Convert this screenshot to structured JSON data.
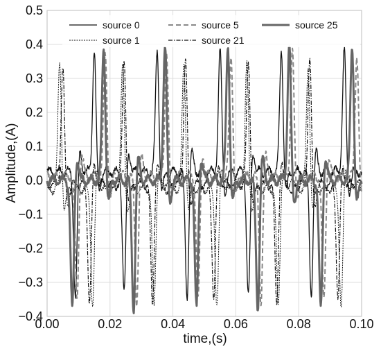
{
  "chart_data": {
    "type": "line",
    "xlabel": "time,(s)",
    "ylabel": "Amplitude,(A)",
    "xlim": [
      0.0,
      0.1
    ],
    "ylim": [
      -0.4,
      0.5
    ],
    "x_ticks": [
      0.0,
      0.02,
      0.04,
      0.06,
      0.08,
      0.1
    ],
    "x_tick_labels": [
      "0.00",
      "0.02",
      "0.04",
      "0.06",
      "0.08",
      "0.10"
    ],
    "y_ticks": [
      -0.4,
      -0.3,
      -0.2,
      -0.1,
      0.0,
      0.1,
      0.2,
      0.3,
      0.4,
      0.5
    ],
    "y_tick_labels": [
      "−0.4",
      "−0.3",
      "−0.2",
      "−0.1",
      "0.0",
      "0.1",
      "0.2",
      "0.3",
      "0.4",
      "0.5"
    ],
    "grid": true,
    "legend_position": "top",
    "legend_columns": 3,
    "series": [
      {
        "name": "source 0",
        "color": "#111111",
        "dash": "solid",
        "width": 1.3,
        "baseline": 0.025,
        "pulses": [
          {
            "t": 0.009,
            "a": -0.37
          },
          {
            "t": 0.015,
            "a": 0.36
          },
          {
            "t": 0.0245,
            "a": -0.36
          },
          {
            "t": 0.035,
            "a": 0.36
          },
          {
            "t": 0.0445,
            "a": -0.37
          },
          {
            "t": 0.055,
            "a": 0.36
          },
          {
            "t": 0.064,
            "a": -0.37
          },
          {
            "t": 0.0745,
            "a": 0.36
          },
          {
            "t": 0.084,
            "a": -0.36
          },
          {
            "t": 0.0945,
            "a": 0.36
          }
        ]
      },
      {
        "name": "source 1",
        "color": "#111111",
        "dash": "2,1.5",
        "width": 1.0,
        "baseline": -0.025,
        "pulses": [
          {
            "t": 0.004,
            "a": 0.37
          },
          {
            "t": 0.0145,
            "a": -0.35
          },
          {
            "t": 0.024,
            "a": 0.37
          },
          {
            "t": 0.034,
            "a": -0.35
          },
          {
            "t": 0.0435,
            "a": 0.37
          },
          {
            "t": 0.054,
            "a": -0.35
          },
          {
            "t": 0.0635,
            "a": 0.37
          },
          {
            "t": 0.0735,
            "a": -0.35
          },
          {
            "t": 0.083,
            "a": 0.36
          },
          {
            "t": 0.0935,
            "a": -0.35
          }
        ]
      },
      {
        "name": "source 5",
        "color": "#888888",
        "dash": "7,4",
        "width": 2.0,
        "baseline": 0.012,
        "pulses": [
          {
            "t": 0.0095,
            "a": -0.37
          },
          {
            "t": 0.0185,
            "a": 0.36
          },
          {
            "t": 0.0285,
            "a": -0.37
          },
          {
            "t": 0.038,
            "a": 0.37
          },
          {
            "t": 0.048,
            "a": -0.37
          },
          {
            "t": 0.0585,
            "a": 0.36
          },
          {
            "t": 0.068,
            "a": -0.37
          },
          {
            "t": 0.078,
            "a": 0.37
          },
          {
            "t": 0.088,
            "a": -0.37
          },
          {
            "t": 0.0985,
            "a": 0.36
          }
        ]
      },
      {
        "name": "source 21",
        "color": "#111111",
        "dash": "6,2,1.5,2",
        "width": 1.2,
        "baseline": -0.012,
        "pulses": [
          {
            "t": 0.005,
            "a": 0.34
          },
          {
            "t": 0.0135,
            "a": -0.35
          },
          {
            "t": 0.0245,
            "a": 0.37
          },
          {
            "t": 0.0335,
            "a": -0.35
          },
          {
            "t": 0.044,
            "a": 0.37
          },
          {
            "t": 0.053,
            "a": -0.34
          },
          {
            "t": 0.064,
            "a": 0.37
          },
          {
            "t": 0.073,
            "a": -0.35
          },
          {
            "t": 0.0835,
            "a": 0.37
          },
          {
            "t": 0.0925,
            "a": -0.34
          }
        ]
      },
      {
        "name": "source 25",
        "color": "#666666",
        "dash": "solid",
        "width": 3.0,
        "baseline": 0.0,
        "pulses": [
          {
            "t": 0.008,
            "a": -0.38
          },
          {
            "t": 0.018,
            "a": 0.39
          },
          {
            "t": 0.0275,
            "a": -0.38
          },
          {
            "t": 0.0375,
            "a": 0.4
          },
          {
            "t": 0.0475,
            "a": -0.38
          },
          {
            "t": 0.0575,
            "a": 0.4
          },
          {
            "t": 0.067,
            "a": -0.38
          },
          {
            "t": 0.077,
            "a": 0.4
          },
          {
            "t": 0.087,
            "a": -0.38
          },
          {
            "t": 0.097,
            "a": 0.4
          }
        ]
      }
    ]
  }
}
